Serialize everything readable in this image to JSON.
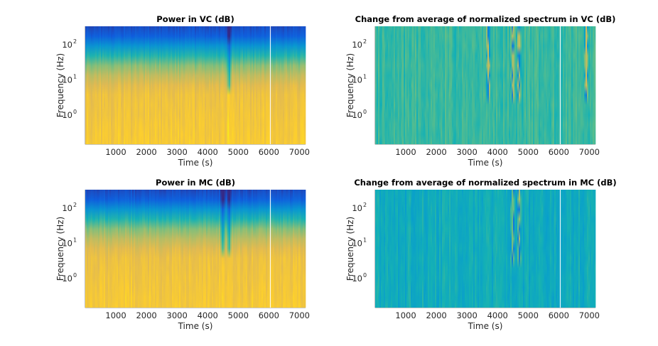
{
  "chart_data": [
    {
      "type": "heatmap",
      "title": "Power in VC (dB)",
      "xlabel": "Time (s)",
      "ylabel": "Frequency (Hz)",
      "x_ticks": [
        "1000",
        "2000",
        "3000",
        "4000",
        "5000",
        "6000",
        "7000"
      ],
      "y_ticks": [
        {
          "base": "10",
          "exp": "2"
        },
        {
          "base": "10",
          "exp": "1"
        },
        {
          "base": "10",
          "exp": "0"
        }
      ],
      "x_range": [
        0,
        7200
      ],
      "y_range_log10": [
        -0.85,
        2.5
      ],
      "y_scale": "log",
      "colormap": "parula",
      "grid": false,
      "legend": "none",
      "events_s": [
        4700
      ],
      "gap_s": [
        6050
      ]
    },
    {
      "type": "heatmap",
      "title": "Change from average of normalized spectrum in VC (dB)",
      "xlabel": "Time (s)",
      "ylabel": "Frequency (Hz)",
      "x_ticks": [
        "1000",
        "2000",
        "3000",
        "4000",
        "5000",
        "6000",
        "7000"
      ],
      "y_ticks": [
        {
          "base": "10",
          "exp": "2"
        },
        {
          "base": "10",
          "exp": "1"
        },
        {
          "base": "10",
          "exp": "0"
        }
      ],
      "x_range": [
        0,
        7200
      ],
      "y_range_log10": [
        -0.85,
        2.5
      ],
      "y_scale": "log",
      "colormap": "parula",
      "grid": false,
      "legend": "none",
      "events_s": [
        3700,
        4500,
        4700,
        6900
      ],
      "gap_s": [
        6050
      ]
    },
    {
      "type": "heatmap",
      "title": "Power in MC (dB)",
      "xlabel": "Time (s)",
      "ylabel": "Frequency (Hz)",
      "x_ticks": [
        "1000",
        "2000",
        "3000",
        "4000",
        "5000",
        "6000",
        "7000"
      ],
      "y_ticks": [
        {
          "base": "10",
          "exp": "2"
        },
        {
          "base": "10",
          "exp": "1"
        },
        {
          "base": "10",
          "exp": "0"
        }
      ],
      "x_range": [
        0,
        7200
      ],
      "y_range_log10": [
        -0.85,
        2.5
      ],
      "y_scale": "log",
      "colormap": "parula",
      "grid": false,
      "legend": "none",
      "events_s": [
        4500,
        4700
      ],
      "gap_s": [
        6050
      ]
    },
    {
      "type": "heatmap",
      "title": "Change from average of normalized spectrum in MC (dB)",
      "xlabel": "Time (s)",
      "ylabel": "Frequency (Hz)",
      "x_ticks": [
        "1000",
        "2000",
        "3000",
        "4000",
        "5000",
        "6000",
        "7000"
      ],
      "y_ticks": [
        {
          "base": "10",
          "exp": "2"
        },
        {
          "base": "10",
          "exp": "1"
        },
        {
          "base": "10",
          "exp": "0"
        }
      ],
      "x_range": [
        0,
        7200
      ],
      "y_range_log10": [
        -0.85,
        2.5
      ],
      "y_scale": "log",
      "colormap": "parula",
      "grid": false,
      "legend": "none",
      "events_s": [
        4500,
        4700
      ],
      "gap_s": [
        6050
      ]
    }
  ]
}
